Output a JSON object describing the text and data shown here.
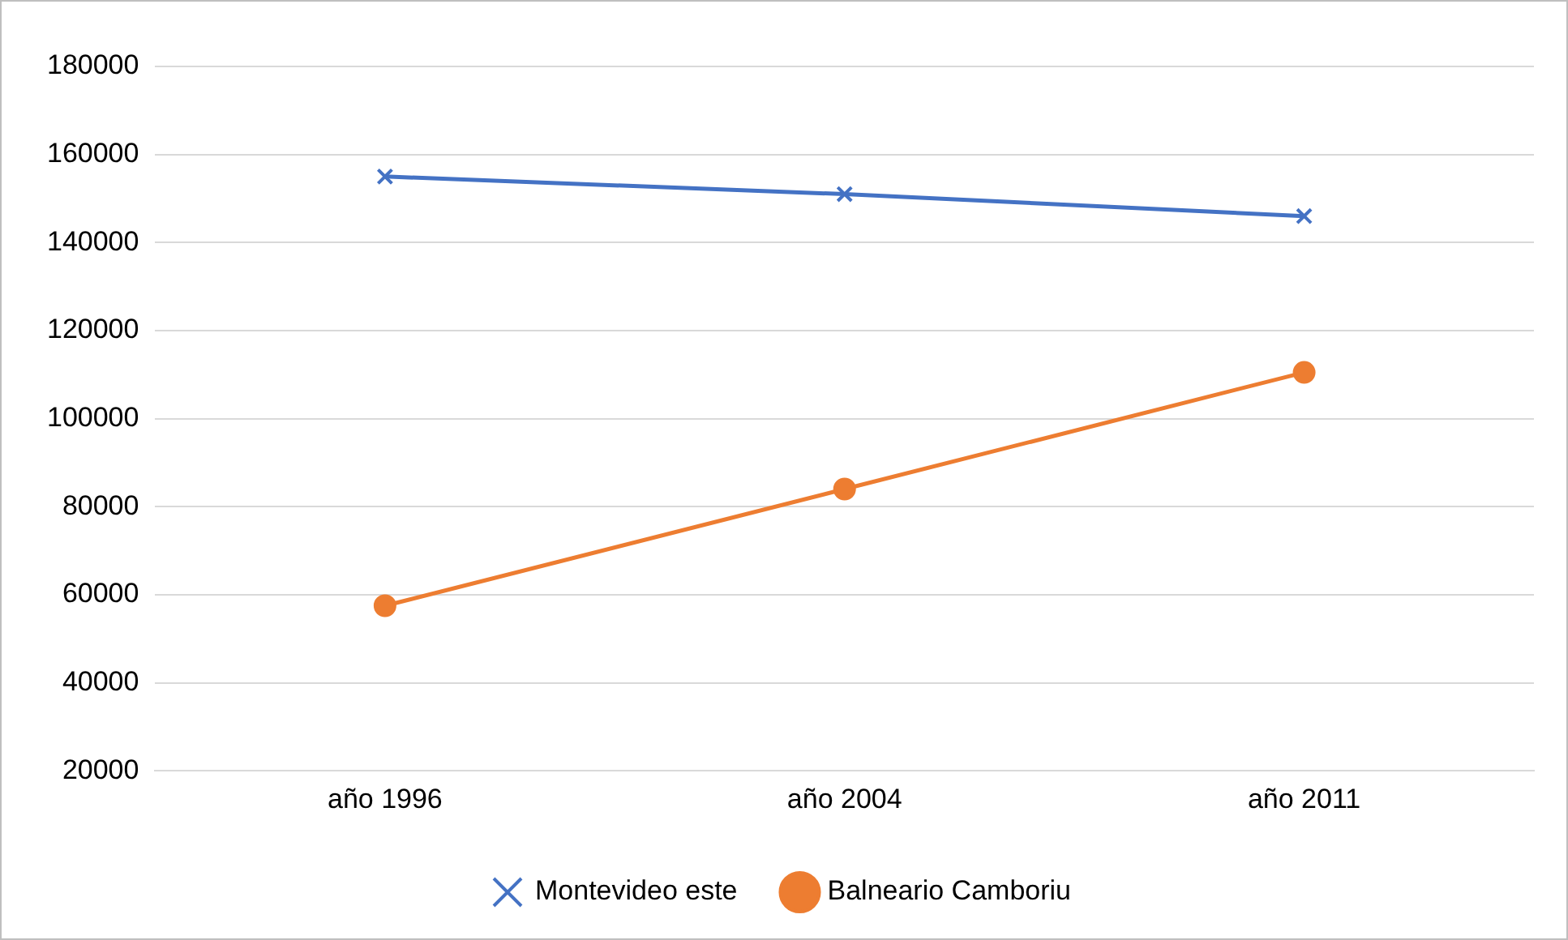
{
  "chart_data": {
    "type": "line",
    "categories": [
      "año 1996",
      "año 2004",
      "año 2011"
    ],
    "series": [
      {
        "name": "Montevideo este",
        "color": "#4472c4",
        "marker": "cross",
        "values": [
          155000,
          151000,
          146000
        ]
      },
      {
        "name": "Balneario Camboriu",
        "color": "#ed7d31",
        "marker": "circle",
        "values": [
          57500,
          84000,
          110500
        ]
      }
    ],
    "ylim": [
      20000,
      180000
    ],
    "yticks": [
      20000,
      40000,
      60000,
      80000,
      100000,
      120000,
      140000,
      160000,
      180000
    ],
    "grid": "y",
    "legend": "bottom"
  }
}
